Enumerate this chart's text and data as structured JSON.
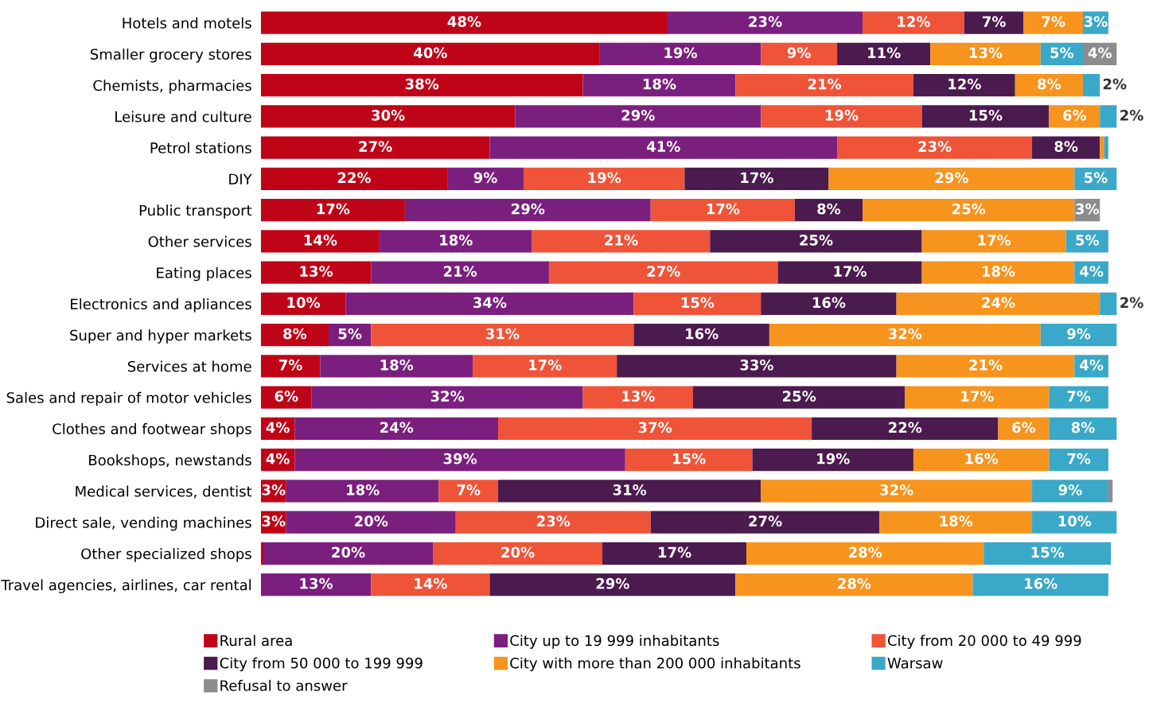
{
  "chart_data": {
    "type": "bar",
    "orientation": "horizontal",
    "stacked": true,
    "legend": "bottom",
    "grid": false,
    "categories": [
      "Hotels and motels",
      "Smaller grocery stores",
      "Chemists, pharmacies",
      "Leisure and culture",
      "Petrol stations",
      "DIY",
      "Public transport",
      "Other services",
      "Eating places",
      "Electronics and apliances",
      "Super and hyper markets",
      "Services at home",
      "Sales and repair of motor vehicles",
      "Clothes and footwear shops",
      "Bookshops, newstands",
      "Medical services, dentist",
      "Direct sale, vending machines",
      "Other specialized shops",
      "Travel agencies, airlines, car rental"
    ],
    "series": [
      {
        "name": "Rural area",
        "color": "#c00418",
        "values": [
          48,
          40,
          38,
          30,
          27,
          22,
          17,
          14,
          13,
          10,
          8,
          7,
          6,
          4,
          4,
          3,
          3,
          0.3,
          null
        ],
        "value_labels": [
          "48%",
          "40%",
          "38%",
          "30%",
          "27%",
          "22%",
          "17%",
          "14%",
          "13%",
          "10%",
          "8%",
          "7%",
          "6%",
          "4%",
          "4%",
          "3%",
          "3%",
          null,
          null
        ]
      },
      {
        "name": "City up to 19 999 inhabitants",
        "color": "#7b1f7e",
        "values": [
          23,
          19,
          18,
          29,
          41,
          9,
          29,
          18,
          21,
          34,
          5,
          18,
          32,
          24,
          39,
          18,
          20,
          20,
          13
        ],
        "value_labels": [
          "23%",
          "19%",
          "18%",
          "29%",
          "41%",
          "9%",
          "29%",
          "18%",
          "21%",
          "34%",
          "5%",
          "18%",
          "32%",
          "24%",
          "39%",
          "18%",
          "20%",
          "20%",
          "13%"
        ]
      },
      {
        "name": "City from 20 000 to 49 999",
        "color": "#ef5439",
        "values": [
          12,
          9,
          21,
          19,
          23,
          19,
          17,
          21,
          27,
          15,
          31,
          17,
          13,
          37,
          15,
          7,
          23,
          20,
          14
        ],
        "value_labels": [
          "12%",
          "9%",
          "21%",
          "19%",
          "23%",
          "19%",
          "17%",
          "21%",
          "27%",
          "15%",
          "31%",
          "17%",
          "13%",
          "37%",
          "15%",
          "7%",
          "23%",
          "20%",
          "14%"
        ]
      },
      {
        "name": "City from 50 000 to 199 999",
        "color": "#4b1a4e",
        "values": [
          7,
          11,
          12,
          15,
          8,
          17,
          8,
          25,
          17,
          16,
          16,
          33,
          25,
          22,
          19,
          31,
          27,
          17,
          29
        ],
        "value_labels": [
          "7%",
          "11%",
          "12%",
          "15%",
          "8%",
          "17%",
          "8%",
          "25%",
          "17%",
          "16%",
          "16%",
          "33%",
          "25%",
          "22%",
          "19%",
          "31%",
          "27%",
          "17%",
          "29%"
        ]
      },
      {
        "name": "City with more than 200 000 inhabitants",
        "color": "#f7941d",
        "values": [
          7,
          13,
          8,
          6,
          0.5,
          29,
          25,
          17,
          18,
          24,
          32,
          21,
          17,
          6,
          16,
          32,
          18,
          28,
          28
        ],
        "value_labels": [
          "7%",
          "13%",
          "8%",
          "6%",
          null,
          "29%",
          "25%",
          "17%",
          "18%",
          "24%",
          "32%",
          "21%",
          "17%",
          "6%",
          "16%",
          "32%",
          "18%",
          "28%",
          "28%"
        ]
      },
      {
        "name": "Warsaw",
        "color": "#3aa8c8",
        "values": [
          3,
          5,
          2,
          2,
          0.5,
          5,
          null,
          5,
          4,
          2,
          9,
          4,
          7,
          8,
          7,
          9,
          10,
          15,
          16
        ],
        "value_labels": [
          "3%",
          "5%",
          "2%",
          "2%",
          null,
          "5%",
          null,
          "5%",
          "4%",
          "2%",
          "9%",
          "4%",
          "7%",
          "8%",
          "7%",
          "9%",
          "10%",
          "15%",
          "16%"
        ]
      },
      {
        "name": "Refusal to answer",
        "color": "#8c8c8c",
        "values": [
          null,
          4,
          null,
          null,
          null,
          null,
          3,
          null,
          null,
          null,
          null,
          null,
          null,
          null,
          null,
          0.5,
          null,
          null,
          null
        ],
        "value_labels": [
          null,
          "4%",
          null,
          null,
          null,
          null,
          "3%",
          null,
          null,
          null,
          null,
          null,
          null,
          null,
          null,
          null,
          null,
          null,
          null
        ]
      }
    ]
  }
}
